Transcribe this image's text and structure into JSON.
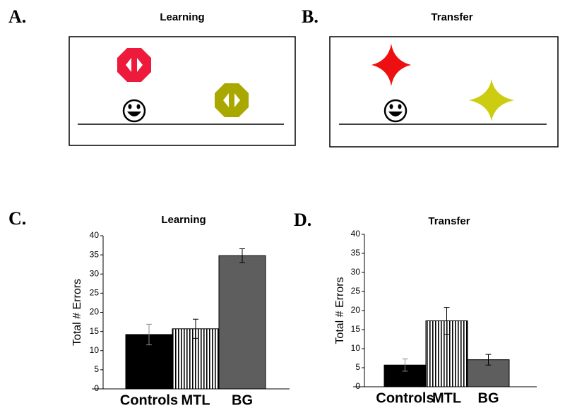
{
  "panels": [
    {
      "letter": "A.",
      "title": "Learning"
    },
    {
      "letter": "B.",
      "title": "Transfer"
    }
  ],
  "chart_data": [
    {
      "type": "bar",
      "letter": "C.",
      "title": "Learning",
      "y_label": "Total # Errors",
      "categories": [
        "Controls",
        "MTL",
        "BG"
      ],
      "values": [
        14.2,
        15.7,
        34.8
      ],
      "errors": [
        2.7,
        2.5,
        1.8
      ],
      "colors": [
        "#000000",
        "#ffffff",
        "#5e5e5e"
      ],
      "patterns": [
        "solid",
        "stripes",
        "solid"
      ],
      "ylim": [
        0,
        40
      ],
      "yticks": [
        0,
        5,
        10,
        15,
        20,
        25,
        30,
        35,
        40
      ]
    },
    {
      "type": "bar",
      "letter": "D.",
      "title": "Transfer",
      "y_label": "Total # Errors",
      "categories": [
        "Controls",
        "MTL",
        "BG"
      ],
      "values": [
        5.7,
        17.3,
        7.1
      ],
      "errors": [
        1.6,
        3.5,
        1.4
      ],
      "colors": [
        "#000000",
        "#ffffff",
        "#5e5e5e"
      ],
      "patterns": [
        "solid",
        "stripes",
        "solid"
      ],
      "ylim": [
        0,
        40
      ],
      "yticks": [
        0,
        5,
        10,
        15,
        20,
        25,
        30,
        35,
        40
      ]
    }
  ]
}
